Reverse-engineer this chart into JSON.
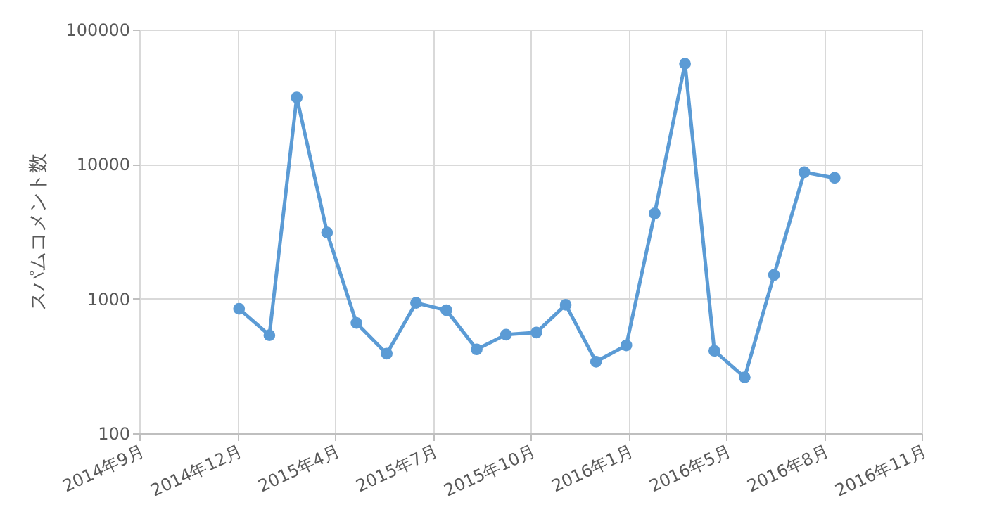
{
  "chart_data": {
    "type": "line",
    "ylabel": "スパムコメント数",
    "x": [
      "2015-01-01",
      "2015-02-01",
      "2015-03-01",
      "2015-04-01",
      "2015-05-01",
      "2015-06-01",
      "2015-07-01",
      "2015-08-01",
      "2015-09-01",
      "2015-10-01",
      "2015-11-01",
      "2015-12-01",
      "2016-01-01",
      "2016-02-01",
      "2016-03-01",
      "2016-04-01",
      "2016-05-01",
      "2016-06-01",
      "2016-07-01",
      "2016-08-01",
      "2016-09-01"
    ],
    "series": [
      {
        "color": "#5b9bd5",
        "values": [
          840,
          535,
          31300,
          3100,
          660,
          390,
          930,
          820,
          420,
          540,
          560,
          900,
          340,
          450,
          4300,
          55700,
          410,
          260,
          1500,
          8700,
          7900
        ]
      }
    ],
    "xlim": [
      "2014-09-21",
      "2016-11-29"
    ],
    "xticks": [
      {
        "value": "2014-09-21",
        "label": "2014年9月"
      },
      {
        "value": "2014-12-30",
        "label": "2014年12月"
      },
      {
        "value": "2015-04-09",
        "label": "2015年4月"
      },
      {
        "value": "2015-07-18",
        "label": "2015年7月"
      },
      {
        "value": "2015-10-26",
        "label": "2015年10月"
      },
      {
        "value": "2016-02-03",
        "label": "2016年1月"
      },
      {
        "value": "2016-05-13",
        "label": "2016年5月"
      },
      {
        "value": "2016-08-21",
        "label": "2016年8月"
      },
      {
        "value": "2016-11-29",
        "label": "2016年11月"
      }
    ],
    "ylim": [
      100,
      100000
    ],
    "yticks": [
      100,
      1000,
      10000,
      100000
    ],
    "log": true,
    "grid": true,
    "marker": "circle",
    "line_style": "solid"
  }
}
